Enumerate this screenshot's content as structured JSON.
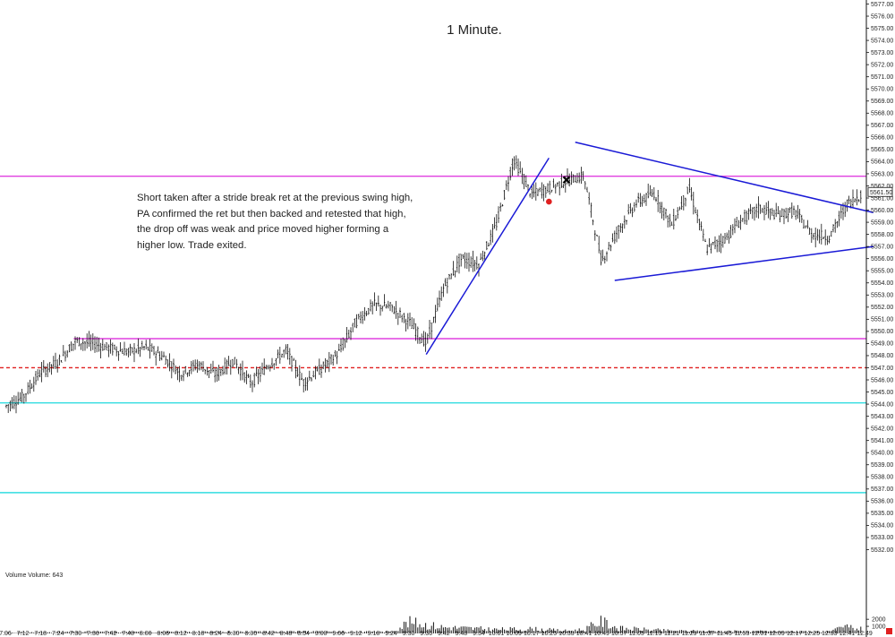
{
  "chart_data": {
    "type": "candlestick",
    "title": "1 Minute.",
    "annotation": "Short taken after a stride break ret at the previous swing high, PA confirmed the ret but then backed and retested that high, the drop off was weak and price moved higher forming a higher low.  Trade exited.",
    "current_price_label": "5561.50",
    "ylim": [
      5531,
      5577
    ],
    "y_ticks": [
      "5532.00",
      "5533.00",
      "5534.00",
      "5535.00",
      "5536.00",
      "5537.00",
      "5538.00",
      "5539.00",
      "5540.00",
      "5541.00",
      "5542.00",
      "5543.00",
      "5544.00",
      "5545.00",
      "5546.00",
      "5547.00",
      "5548.00",
      "5549.00",
      "5550.00",
      "5551.00",
      "5552.00",
      "5553.00",
      "5554.00",
      "5555.00",
      "5556.00",
      "5557.00",
      "5558.00",
      "5559.00",
      "5560.00",
      "5561.00",
      "5562.00",
      "5563.00",
      "5564.00",
      "5565.00",
      "5566.00",
      "5567.00",
      "5568.00",
      "5569.00",
      "5570.00",
      "5571.00",
      "5572.00",
      "5573.00",
      "5574.00",
      "5575.00",
      "5576.00",
      "5577.00"
    ],
    "x_ticks": [
      "7:06",
      "7:12",
      "7:18",
      "7:24",
      "7:30",
      "7:36",
      "7:42",
      "7:48",
      "8:00",
      "8:06",
      "8:12",
      "8:18",
      "8:24",
      "8:30",
      "8:36",
      "8:42",
      "8:48",
      "8:54",
      "9:00",
      "9:06",
      "9:12",
      "9:18",
      "9:24",
      "9:30",
      "9:36",
      "9:42",
      "9:48",
      "9:54",
      "10:01",
      "10:09",
      "10:17",
      "10:25",
      "10:33",
      "10:41",
      "10:49",
      "10:57",
      "11:05",
      "11:13",
      "11:21",
      "11:29",
      "11:37",
      "11:45",
      "11:53",
      "12:01",
      "12:09",
      "12:17",
      "12:25",
      "12:33",
      "12:41",
      "12:49"
    ],
    "horizontal_lines": [
      {
        "price": 5562.8,
        "color": "#e040e0",
        "style": "solid"
      },
      {
        "price": 5549.4,
        "color": "#e040e0",
        "style": "solid",
        "start_label": "7:30"
      },
      {
        "price": 5547.0,
        "color": "#e02020",
        "style": "dashed"
      },
      {
        "price": 5544.1,
        "color": "#33dde0",
        "style": "solid"
      },
      {
        "price": 5536.7,
        "color": "#33dde0",
        "style": "solid"
      }
    ],
    "trend_lines": [
      {
        "from": [
          "9:36",
          5548.1
        ],
        "to": [
          "10:25",
          5564.3
        ],
        "color": "#1a1ad6"
      },
      {
        "from": [
          "10:37",
          5565.6
        ],
        "to": [
          "12:53",
          5559.8
        ],
        "color": "#1a1ad6"
      },
      {
        "from": [
          "10:55",
          5554.2
        ],
        "to": [
          "12:53",
          5557.0
        ],
        "color": "#1a1ad6"
      }
    ],
    "markers": [
      {
        "type": "dot",
        "time": "10:25",
        "price": 5560.7,
        "color": "#e02020"
      },
      {
        "type": "x",
        "time": "10:33",
        "price": 5562.5,
        "color": "#000000"
      }
    ],
    "price_path": [
      [
        "7:06",
        5543.8
      ],
      [
        "7:12",
        5544.6
      ],
      [
        "7:18",
        5546.6
      ],
      [
        "7:24",
        5547.5
      ],
      [
        "7:30",
        5549.2
      ],
      [
        "7:36",
        5549.0
      ],
      [
        "7:42",
        5548.6
      ],
      [
        "7:48",
        5548.3
      ],
      [
        "8:00",
        5548.7
      ],
      [
        "8:06",
        5547.9
      ],
      [
        "8:12",
        5546.5
      ],
      [
        "8:18",
        5547.3
      ],
      [
        "8:24",
        5546.4
      ],
      [
        "8:30",
        5547.6
      ],
      [
        "8:36",
        5545.7
      ],
      [
        "8:42",
        5547.2
      ],
      [
        "8:48",
        5548.4
      ],
      [
        "8:54",
        5545.8
      ],
      [
        "9:00",
        5546.9
      ],
      [
        "9:06",
        5548.2
      ],
      [
        "9:12",
        5550.8
      ],
      [
        "9:18",
        5552.2
      ],
      [
        "9:24",
        5552.0
      ],
      [
        "9:30",
        5550.8
      ],
      [
        "9:36",
        5549.0
      ],
      [
        "9:42",
        5553.6
      ],
      [
        "9:48",
        5556.0
      ],
      [
        "9:54",
        5555.5
      ],
      [
        "10:01",
        5558.8
      ],
      [
        "10:09",
        5564.2
      ],
      [
        "10:17",
        5561.3
      ],
      [
        "10:25",
        5561.8
      ],
      [
        "10:33",
        5562.4
      ],
      [
        "10:41",
        5562.8
      ],
      [
        "10:49",
        5555.8
      ],
      [
        "10:57",
        5558.5
      ],
      [
        "11:05",
        5560.6
      ],
      [
        "11:13",
        5561.4
      ],
      [
        "11:21",
        5558.8
      ],
      [
        "11:29",
        5561.8
      ],
      [
        "11:37",
        5556.8
      ],
      [
        "11:45",
        5557.6
      ],
      [
        "11:53",
        5559.2
      ],
      [
        "12:01",
        5560.2
      ],
      [
        "12:09",
        5559.6
      ],
      [
        "12:17",
        5559.9
      ],
      [
        "12:25",
        5558.0
      ],
      [
        "12:33",
        5557.8
      ],
      [
        "12:41",
        5560.5
      ],
      [
        "12:49",
        5561.5
      ]
    ],
    "volume": {
      "label": "Volume  Volume: 643",
      "y_ticks": [
        "1000",
        "2000"
      ],
      "ylim": [
        0,
        2400
      ],
      "path": [
        [
          "7:06",
          150
        ],
        [
          "7:30",
          250
        ],
        [
          "8:06",
          220
        ],
        [
          "8:48",
          300
        ],
        [
          "9:06",
          260
        ],
        [
          "9:24",
          280
        ],
        [
          "9:30",
          2000
        ],
        [
          "9:42",
          1100
        ],
        [
          "10:01",
          700
        ],
        [
          "10:17",
          800
        ],
        [
          "10:33",
          450
        ],
        [
          "10:41",
          700
        ],
        [
          "10:49",
          2150
        ],
        [
          "10:57",
          900
        ],
        [
          "11:21",
          450
        ],
        [
          "11:45",
          380
        ],
        [
          "12:09",
          350
        ],
        [
          "12:33",
          300
        ],
        [
          "12:41",
          1200
        ],
        [
          "12:49",
          643
        ]
      ]
    }
  }
}
